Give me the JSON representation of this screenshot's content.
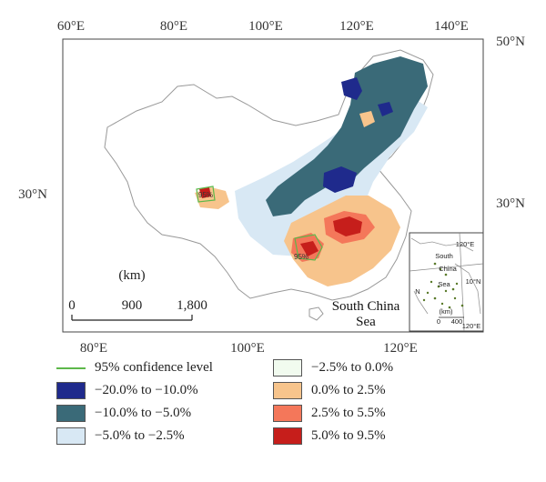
{
  "map": {
    "top_lon_labels": [
      "60°E",
      "80°E",
      "100°E",
      "120°E",
      "140°E"
    ],
    "bottom_lon_labels": [
      "80°E",
      "100°E",
      "120°E"
    ],
    "lat_labels": {
      "top_right": "50°N",
      "mid_left": "30°N",
      "mid_right": "30°N"
    },
    "scale_bar": {
      "unit": "(km)",
      "ticks": [
        "0",
        "900",
        "1,800"
      ]
    },
    "sea_label": [
      "South China",
      "Sea"
    ],
    "marker_labels": [
      "95%",
      "95%"
    ]
  },
  "inset": {
    "labels": [
      "120°E",
      "South",
      "China",
      "Sea",
      "(km)",
      "0",
      "400",
      "120°E",
      "N",
      "10°N"
    ]
  },
  "legend": {
    "items": [
      {
        "label": "95% confidence level",
        "type": "line",
        "color": "#5db84a"
      },
      {
        "label": "−20.0% to −10.0%",
        "type": "fill",
        "color": "#1f2a8c"
      },
      {
        "label": "−10.0% to −5.0%",
        "type": "fill",
        "color": "#3a6a78"
      },
      {
        "label": "−5.0% to −2.5%",
        "type": "fill",
        "color": "#d8e8f4"
      },
      {
        "label": "−2.5% to 0.0%",
        "type": "fill",
        "color": "#f1fbef"
      },
      {
        "label": "0.0% to 2.5%",
        "type": "fill",
        "color": "#f7c48c"
      },
      {
        "label": "2.5% to 5.5%",
        "type": "fill",
        "color": "#f4775a"
      },
      {
        "label": "5.0% to 9.5%",
        "type": "fill",
        "color": "#c61e1b"
      }
    ]
  }
}
